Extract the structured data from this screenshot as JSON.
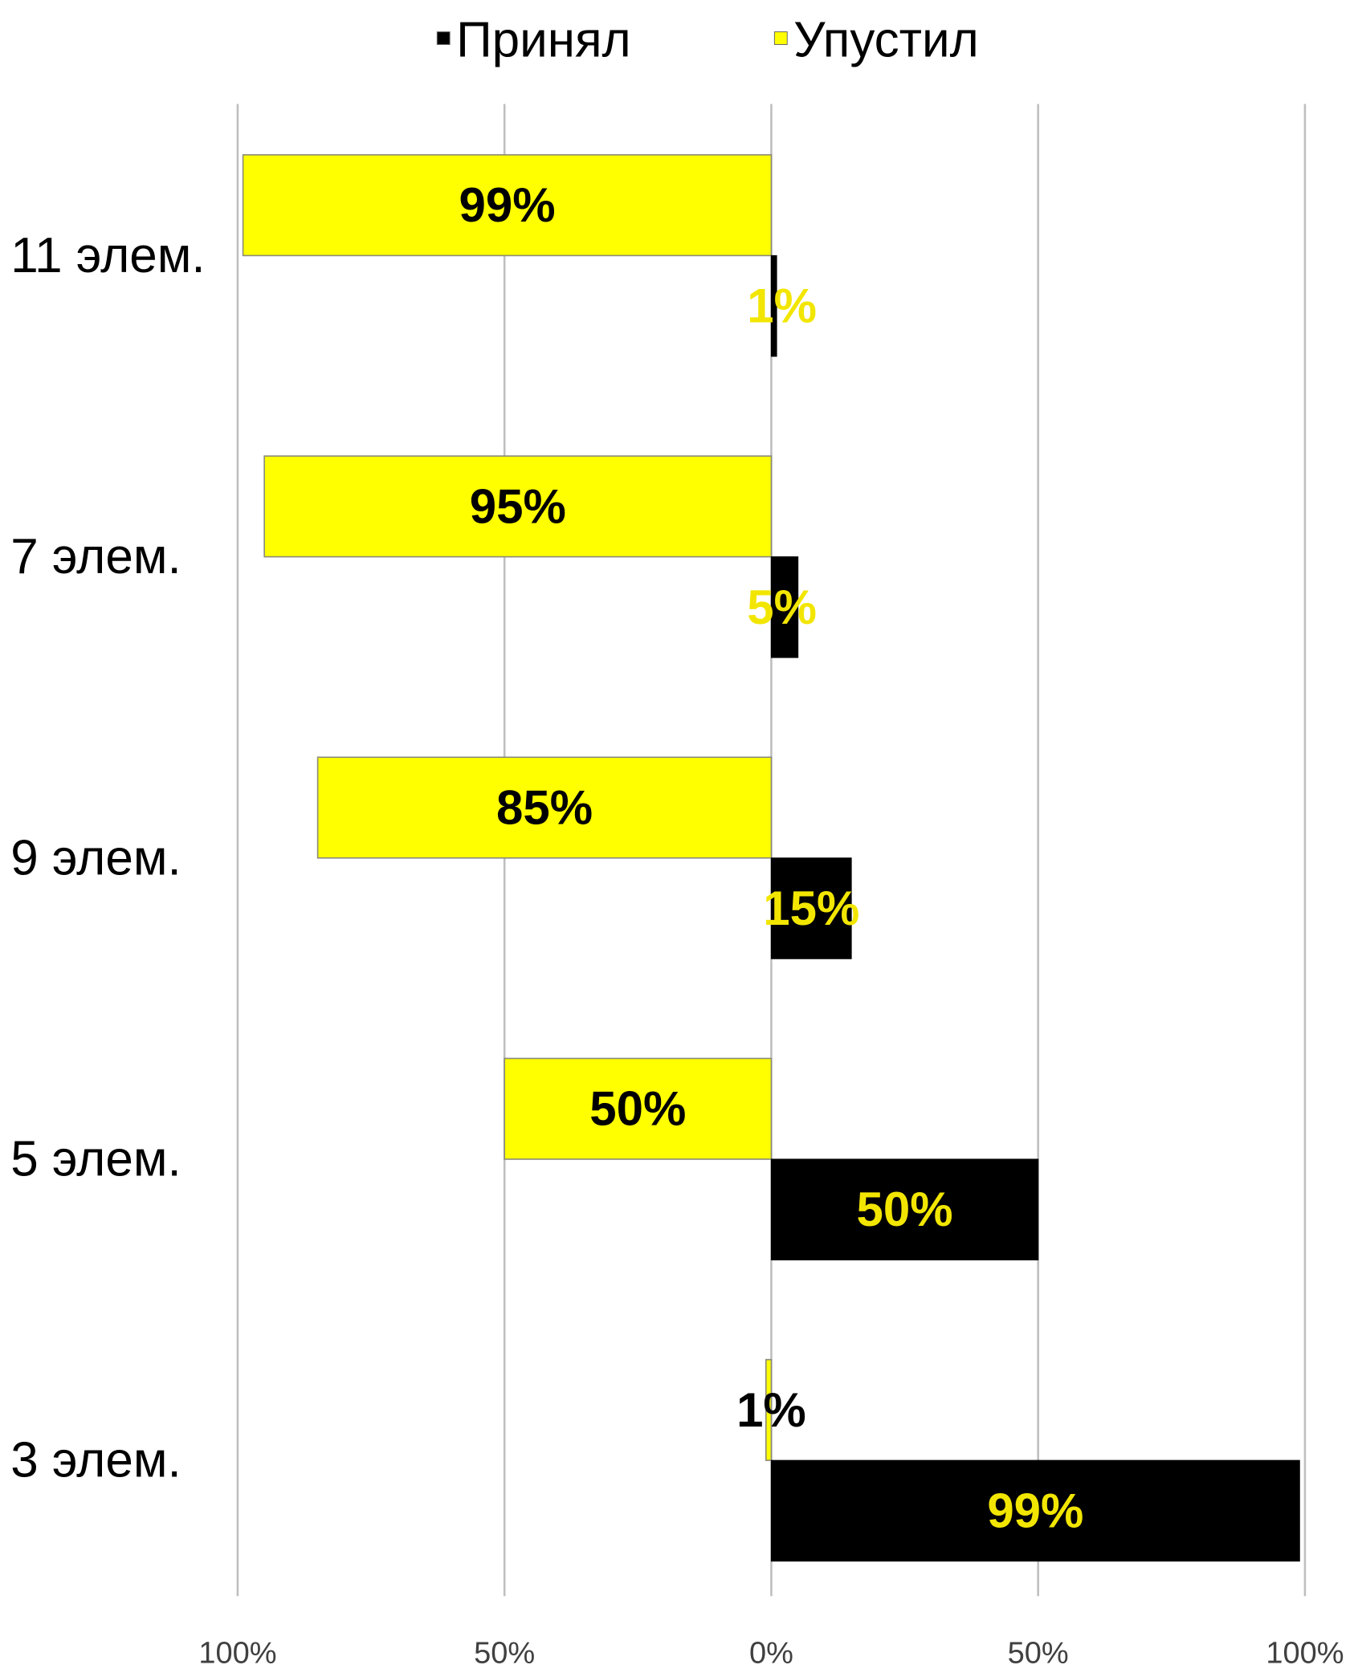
{
  "chart_data": {
    "type": "bar",
    "orientation": "horizontal",
    "layout": "diverging",
    "categories": [
      "11 элем.",
      "7 элем.",
      "9 элем.",
      "5 элем.",
      "3 элем."
    ],
    "series": [
      {
        "name": "Принял",
        "color": "#000000",
        "label_color": "#f2e600",
        "direction": "right",
        "values": [
          1,
          5,
          15,
          50,
          99
        ],
        "labels": [
          "1%",
          "5%",
          "15%",
          "50%",
          "99%"
        ]
      },
      {
        "name": "Упустил",
        "color": "#ffff00",
        "label_color": "#000000",
        "direction": "left",
        "values": [
          99,
          95,
          85,
          50,
          1
        ],
        "labels": [
          "99%",
          "95%",
          "85%",
          "50%",
          "1%"
        ]
      }
    ],
    "x_ticks": [
      "100%",
      "50%",
      "0%",
      "50%",
      "100%"
    ],
    "xlim": [
      -100,
      100
    ],
    "xlabel": "",
    "ylabel": "",
    "grid": true,
    "legend_position": "top-center"
  }
}
